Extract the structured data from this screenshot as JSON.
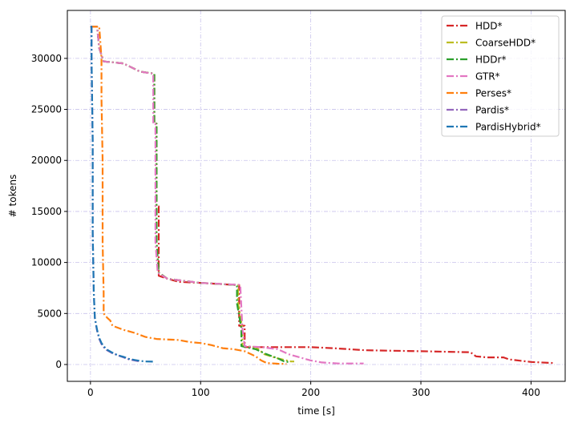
{
  "chart_data": {
    "type": "line",
    "title": "",
    "xlabel": "time [s]",
    "ylabel": "# tokens",
    "xlim": [
      -21,
      431
    ],
    "ylim": [
      -1650,
      34700
    ],
    "xticks": [
      0,
      100,
      200,
      300,
      400
    ],
    "yticks": [
      0,
      5000,
      10000,
      15000,
      20000,
      25000,
      30000
    ],
    "grid": true,
    "legend_position": "top-right",
    "series": [
      {
        "name": "HDD*",
        "color": "#d62728",
        "points": [
          [
            0,
            33100
          ],
          [
            6,
            33100
          ],
          [
            8,
            31000
          ],
          [
            12,
            29700
          ],
          [
            30,
            29500
          ],
          [
            45,
            28700
          ],
          [
            58,
            28500
          ],
          [
            58,
            23600
          ],
          [
            60,
            23600
          ],
          [
            60,
            15500
          ],
          [
            62,
            15500
          ],
          [
            62,
            8700
          ],
          [
            70,
            8400
          ],
          [
            80,
            8100
          ],
          [
            100,
            8000
          ],
          [
            130,
            7800
          ],
          [
            135,
            7800
          ],
          [
            135,
            3800
          ],
          [
            140,
            3800
          ],
          [
            140,
            1700
          ],
          [
            170,
            1700
          ],
          [
            200,
            1700
          ],
          [
            220,
            1600
          ],
          [
            250,
            1400
          ],
          [
            300,
            1300
          ],
          [
            345,
            1200
          ],
          [
            350,
            800
          ],
          [
            360,
            700
          ],
          [
            375,
            700
          ],
          [
            380,
            500
          ],
          [
            400,
            250
          ],
          [
            420,
            150
          ]
        ]
      },
      {
        "name": "CoarseHDD*",
        "color": "#bcbd22",
        "points": [
          [
            0,
            33100
          ],
          [
            6,
            33100
          ],
          [
            8,
            31000
          ],
          [
            12,
            29700
          ],
          [
            30,
            29500
          ],
          [
            45,
            28700
          ],
          [
            58,
            28500
          ],
          [
            58,
            23600
          ],
          [
            60,
            23600
          ],
          [
            60,
            12000
          ],
          [
            62,
            9000
          ],
          [
            70,
            8400
          ],
          [
            100,
            8000
          ],
          [
            134,
            7800
          ],
          [
            134,
            6000
          ],
          [
            138,
            3500
          ],
          [
            138,
            1800
          ],
          [
            150,
            1700
          ],
          [
            158,
            1000
          ],
          [
            170,
            600
          ],
          [
            182,
            300
          ],
          [
            185,
            300
          ]
        ]
      },
      {
        "name": "HDDr*",
        "color": "#2ca02c",
        "points": [
          [
            0,
            33100
          ],
          [
            6,
            33100
          ],
          [
            8,
            31000
          ],
          [
            12,
            29700
          ],
          [
            30,
            29500
          ],
          [
            45,
            28700
          ],
          [
            58,
            28500
          ],
          [
            58,
            23600
          ],
          [
            60,
            23600
          ],
          [
            60,
            12000
          ],
          [
            62,
            9000
          ],
          [
            70,
            8400
          ],
          [
            100,
            8000
          ],
          [
            133,
            7800
          ],
          [
            133,
            6000
          ],
          [
            137,
            3500
          ],
          [
            137,
            1800
          ],
          [
            150,
            1500
          ],
          [
            160,
            1000
          ],
          [
            170,
            600
          ],
          [
            176,
            300
          ],
          [
            180,
            250
          ]
        ]
      },
      {
        "name": "GTR*",
        "color": "#e377c2",
        "points": [
          [
            0,
            33100
          ],
          [
            6,
            33100
          ],
          [
            8,
            31000
          ],
          [
            12,
            29700
          ],
          [
            30,
            29500
          ],
          [
            45,
            28700
          ],
          [
            57,
            28500
          ],
          [
            57,
            23600
          ],
          [
            59,
            23600
          ],
          [
            59,
            12000
          ],
          [
            61,
            9000
          ],
          [
            70,
            8400
          ],
          [
            100,
            8000
          ],
          [
            136,
            7800
          ],
          [
            138,
            3500
          ],
          [
            140,
            1800
          ],
          [
            155,
            1700
          ],
          [
            170,
            1500
          ],
          [
            180,
            1000
          ],
          [
            190,
            700
          ],
          [
            200,
            400
          ],
          [
            210,
            200
          ],
          [
            225,
            100
          ],
          [
            248,
            100
          ]
        ]
      },
      {
        "name": "Perses*",
        "color": "#ff7f0e",
        "points": [
          [
            0,
            33100
          ],
          [
            8,
            33100
          ],
          [
            10,
            30000
          ],
          [
            10,
            26000
          ],
          [
            11,
            20000
          ],
          [
            11,
            12000
          ],
          [
            12,
            7000
          ],
          [
            12,
            5000
          ],
          [
            15,
            4600
          ],
          [
            18,
            4300
          ],
          [
            20,
            3800
          ],
          [
            30,
            3400
          ],
          [
            40,
            3100
          ],
          [
            50,
            2700
          ],
          [
            60,
            2500
          ],
          [
            80,
            2400
          ],
          [
            90,
            2200
          ],
          [
            100,
            2100
          ],
          [
            110,
            1900
          ],
          [
            120,
            1600
          ],
          [
            130,
            1500
          ],
          [
            140,
            1300
          ],
          [
            150,
            800
          ],
          [
            155,
            400
          ],
          [
            160,
            150
          ],
          [
            170,
            80
          ],
          [
            178,
            50
          ]
        ]
      },
      {
        "name": "Pardis*",
        "color": "#9467bd",
        "points": [
          [
            0,
            33100
          ],
          [
            1,
            33100
          ],
          [
            1,
            30000
          ],
          [
            2,
            22000
          ],
          [
            2,
            13000
          ],
          [
            3,
            7000
          ],
          [
            4,
            4500
          ],
          [
            6,
            3300
          ],
          [
            8,
            2500
          ],
          [
            10,
            2000
          ],
          [
            12,
            1700
          ],
          [
            15,
            1400
          ],
          [
            20,
            1100
          ],
          [
            25,
            900
          ],
          [
            30,
            700
          ],
          [
            35,
            500
          ],
          [
            40,
            400
          ],
          [
            45,
            300
          ]
        ]
      },
      {
        "name": "PardisHybrid*",
        "color": "#1f77b4",
        "points": [
          [
            0,
            33100
          ],
          [
            1,
            33100
          ],
          [
            1,
            30000
          ],
          [
            2,
            22000
          ],
          [
            2,
            13000
          ],
          [
            3,
            7000
          ],
          [
            4,
            4600
          ],
          [
            6,
            3400
          ],
          [
            8,
            2600
          ],
          [
            10,
            2100
          ],
          [
            12,
            1800
          ],
          [
            15,
            1450
          ],
          [
            20,
            1150
          ],
          [
            25,
            900
          ],
          [
            30,
            750
          ],
          [
            35,
            550
          ],
          [
            40,
            450
          ],
          [
            45,
            350
          ],
          [
            50,
            300
          ],
          [
            58,
            280
          ]
        ]
      }
    ]
  }
}
